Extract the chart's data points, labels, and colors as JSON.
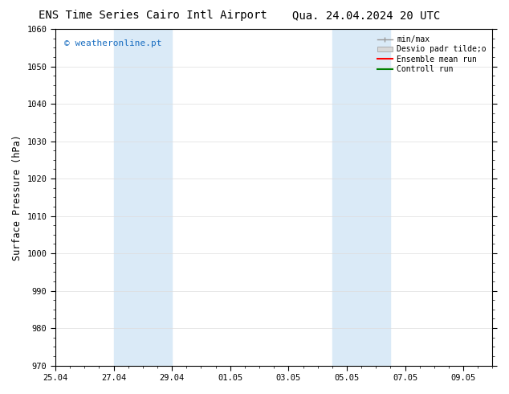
{
  "title_left": "ENS Time Series Cairo Intl Airport",
  "title_right": "Qua. 24.04.2024 20 UTC",
  "ylabel": "Surface Pressure (hPa)",
  "ylim": [
    970,
    1060
  ],
  "yticks": [
    970,
    980,
    990,
    1000,
    1010,
    1020,
    1030,
    1040,
    1050,
    1060
  ],
  "xtick_labels": [
    "25.04",
    "27.04",
    "29.04",
    "01.05",
    "03.05",
    "05.05",
    "07.05",
    "09.05"
  ],
  "xtick_positions": [
    0,
    2,
    4,
    6,
    8,
    10,
    12,
    14
  ],
  "xlim": [
    0,
    15
  ],
  "shaded_bands": [
    {
      "start": 2,
      "end": 4,
      "color": "#daeaf7"
    },
    {
      "start": 9.5,
      "end": 11.5,
      "color": "#daeaf7"
    }
  ],
  "watermark_text": "© weatheronline.pt",
  "watermark_color": "#1a6ec1",
  "legend_labels": [
    "min/max",
    "Desvio padr tilde;o",
    "Ensemble mean run",
    "Controll run"
  ],
  "legend_colors": [
    "#999999",
    "#cccccc",
    "#ff0000",
    "#008000"
  ],
  "bg_color": "#ffffff",
  "grid_color": "#dddddd",
  "title_fontsize": 10,
  "tick_fontsize": 7.5,
  "label_fontsize": 8.5
}
